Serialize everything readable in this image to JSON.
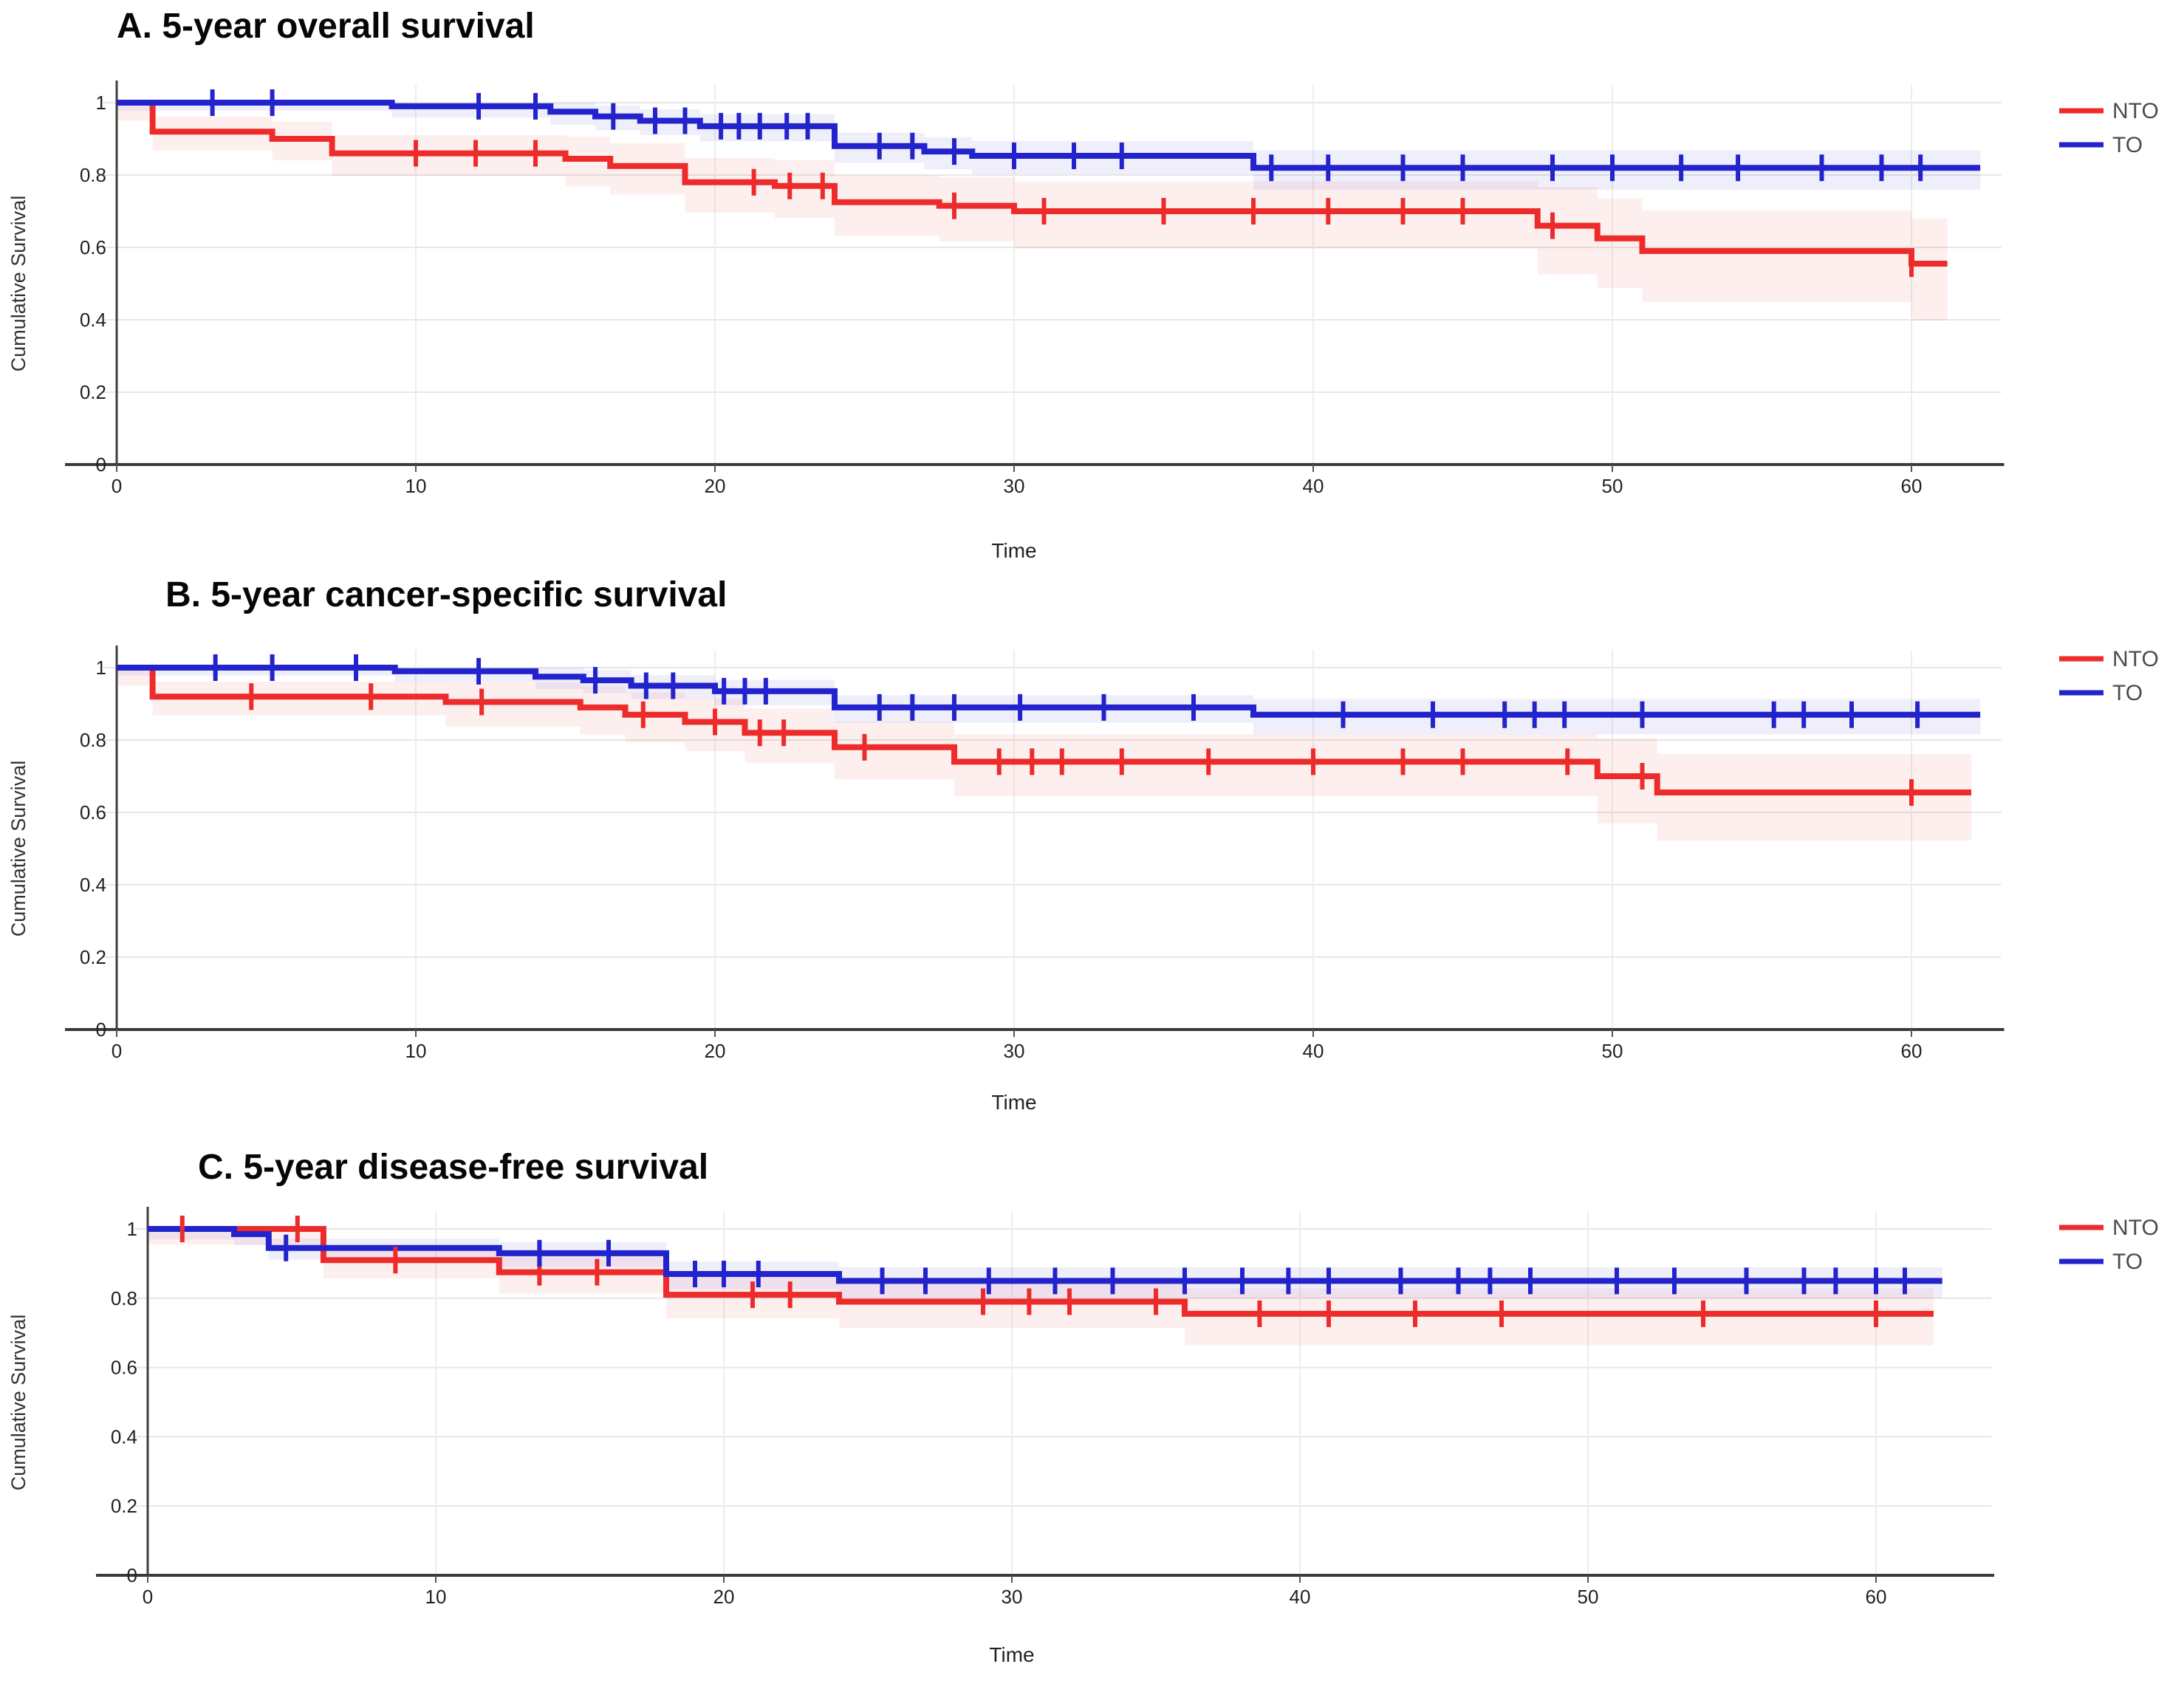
{
  "figure": {
    "ylabel": "Cumulative Survival",
    "xlabel": "Time",
    "legend": [
      {
        "label": "NTO",
        "color": "#ee2b2b"
      },
      {
        "label": "TO",
        "color": "#2323cd"
      }
    ]
  },
  "chart_data": [
    {
      "type": "step-line",
      "subtype": "kaplan-meier",
      "title": "A. 5-year overall survival",
      "xlabel": "Time",
      "ylabel": "Cumulative Survival",
      "xlim": [
        0,
        63
      ],
      "ylim": [
        0,
        1.05
      ],
      "x_ticks": [
        0,
        10,
        20,
        30,
        40,
        50,
        60
      ],
      "y_ticks": [
        0,
        0.2,
        0.4,
        0.6,
        0.8,
        1
      ],
      "grid": true,
      "legend_position": "right",
      "legend": [
        {
          "label": "NTO",
          "color": "#ee2b2b"
        },
        {
          "label": "TO",
          "color": "#2323cd"
        }
      ],
      "series": [
        {
          "name": "NTO",
          "color": "#ee2b2b",
          "band_color": "rgba(238,43,43,0.075)",
          "steps": [
            [
              0,
              1
            ],
            [
              1.2,
              0.92
            ],
            [
              5.2,
              0.9
            ],
            [
              7.2,
              0.86
            ],
            [
              15,
              0.845
            ],
            [
              16.5,
              0.825
            ],
            [
              19,
              0.78
            ],
            [
              22,
              0.77
            ],
            [
              24,
              0.725
            ],
            [
              27.5,
              0.715
            ],
            [
              30,
              0.7
            ],
            [
              47.5,
              0.66
            ],
            [
              49.5,
              0.625
            ],
            [
              51,
              0.59
            ],
            [
              60,
              0.555
            ]
          ],
          "end": 61.2,
          "censors": [
            10,
            12,
            14,
            21.3,
            22.5,
            23.6,
            28,
            31,
            35,
            38,
            40.5,
            43,
            45,
            48,
            60
          ]
        },
        {
          "name": "TO",
          "color": "#2323cd",
          "band_color": "rgba(35,35,205,0.07)",
          "steps": [
            [
              0,
              1
            ],
            [
              9.2,
              0.99
            ],
            [
              14.5,
              0.975
            ],
            [
              16,
              0.962
            ],
            [
              17.5,
              0.95
            ],
            [
              19.5,
              0.935
            ],
            [
              24,
              0.88
            ],
            [
              27,
              0.865
            ],
            [
              28.6,
              0.853
            ],
            [
              38,
              0.82
            ]
          ],
          "end": 62.3,
          "censors": [
            3.2,
            5.2,
            12.1,
            14,
            16.6,
            18,
            19,
            20.2,
            20.8,
            21.5,
            22.4,
            23.1,
            25.5,
            26.6,
            28,
            30,
            32,
            33.6,
            38.6,
            40.5,
            43,
            45,
            48,
            50,
            52.3,
            54.2,
            57,
            59,
            60.3
          ]
        }
      ]
    },
    {
      "type": "step-line",
      "subtype": "kaplan-meier",
      "title": "B. 5-year cancer-specific survival",
      "xlabel": "Time",
      "ylabel": "Cumulative Survival",
      "xlim": [
        0,
        63
      ],
      "ylim": [
        0,
        1.05
      ],
      "x_ticks": [
        0,
        10,
        20,
        30,
        40,
        50,
        60
      ],
      "y_ticks": [
        0,
        0.2,
        0.4,
        0.6,
        0.8,
        1
      ],
      "grid": true,
      "legend_position": "right",
      "legend": [
        {
          "label": "NTO",
          "color": "#ee2b2b"
        },
        {
          "label": "TO",
          "color": "#2323cd"
        }
      ],
      "series": [
        {
          "name": "NTO",
          "color": "#ee2b2b",
          "band_color": "rgba(238,43,43,0.075)",
          "steps": [
            [
              0,
              1
            ],
            [
              1.2,
              0.92
            ],
            [
              11,
              0.905
            ],
            [
              15.5,
              0.89
            ],
            [
              17,
              0.87
            ],
            [
              19,
              0.85
            ],
            [
              21,
              0.82
            ],
            [
              24,
              0.78
            ],
            [
              28,
              0.74
            ],
            [
              49.5,
              0.7
            ],
            [
              51.5,
              0.655
            ]
          ],
          "end": 62,
          "censors": [
            4.5,
            8.5,
            12.2,
            17.6,
            20,
            21.5,
            22.3,
            25,
            29.5,
            30.6,
            31.6,
            33.6,
            36.5,
            40,
            43,
            45,
            48.5,
            51,
            60
          ]
        },
        {
          "name": "TO",
          "color": "#2323cd",
          "band_color": "rgba(35,35,205,0.07)",
          "steps": [
            [
              0,
              1
            ],
            [
              9.3,
              0.99
            ],
            [
              14,
              0.975
            ],
            [
              15.6,
              0.965
            ],
            [
              17.2,
              0.95
            ],
            [
              20,
              0.935
            ],
            [
              24,
              0.89
            ],
            [
              38,
              0.87
            ]
          ],
          "end": 62.3,
          "censors": [
            3.3,
            5.2,
            8,
            12.1,
            16,
            17.7,
            18.6,
            20.3,
            21,
            21.7,
            25.5,
            26.6,
            28,
            30.2,
            33,
            36,
            41,
            44,
            46.4,
            47.4,
            48.4,
            51,
            55.4,
            56.4,
            58,
            60.2
          ]
        }
      ]
    },
    {
      "type": "step-line",
      "subtype": "kaplan-meier",
      "title": "C. 5-year disease-free survival",
      "xlabel": "Time",
      "ylabel": "Cumulative Survival",
      "xlim": [
        0,
        64
      ],
      "ylim": [
        0,
        1.05
      ],
      "x_ticks": [
        0,
        10,
        20,
        30,
        40,
        50,
        60
      ],
      "y_ticks": [
        0,
        0.2,
        0.4,
        0.6,
        0.8,
        1
      ],
      "grid": true,
      "legend_position": "right",
      "legend": [
        {
          "label": "NTO",
          "color": "#ee2b2b"
        },
        {
          "label": "TO",
          "color": "#2323cd"
        }
      ],
      "series": [
        {
          "name": "NTO",
          "color": "#ee2b2b",
          "band_color": "rgba(238,43,43,0.075)",
          "steps": [
            [
              0,
              1
            ],
            [
              6.1,
              0.91
            ],
            [
              12.2,
              0.875
            ],
            [
              18,
              0.81
            ],
            [
              24,
              0.79
            ],
            [
              36,
              0.755
            ]
          ],
          "end": 62,
          "censors": [
            1.2,
            5.2,
            8.6,
            13.6,
            15.6,
            21,
            22.3,
            29,
            30.6,
            32,
            35,
            38.6,
            41,
            44,
            47,
            54,
            60
          ]
        },
        {
          "name": "TO",
          "color": "#2323cd",
          "band_color": "rgba(35,35,205,0.07)",
          "steps": [
            [
              0,
              1
            ],
            [
              3,
              0.985
            ],
            [
              4.2,
              0.945
            ],
            [
              12.2,
              0.93
            ],
            [
              18,
              0.87
            ],
            [
              24,
              0.85
            ]
          ],
          "end": 62.3,
          "censors": [
            4.8,
            13.6,
            16,
            19,
            20,
            21.2,
            25.5,
            27,
            29.2,
            31.5,
            33.5,
            36,
            38,
            39.6,
            41,
            43.5,
            45.5,
            46.6,
            48,
            51,
            53,
            55.5,
            57.5,
            58.6,
            60,
            61
          ]
        }
      ]
    }
  ]
}
